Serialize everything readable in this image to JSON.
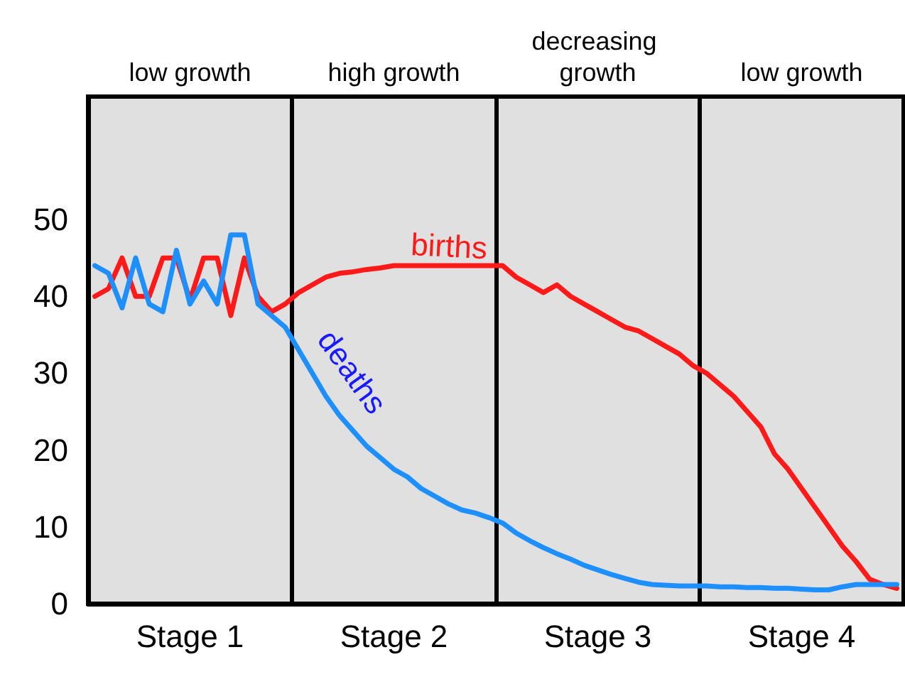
{
  "chart_data": {
    "type": "line",
    "ylim": [
      0,
      66
    ],
    "categories": [
      null,
      null,
      null,
      null,
      null,
      null,
      null,
      "Stage 1",
      null,
      null,
      null,
      null,
      null,
      null,
      null,
      null,
      null,
      null,
      null,
      null,
      null,
      null,
      "Stage 2",
      null,
      null,
      null,
      null,
      null,
      null,
      null,
      null,
      null,
      null,
      null,
      null,
      null,
      null,
      "Stage 3",
      null,
      null,
      null,
      null,
      null,
      null,
      null,
      null,
      null,
      null,
      null,
      null,
      null,
      null,
      "Stage 4",
      null,
      null,
      null,
      null,
      null,
      null,
      null
    ],
    "yticks": [
      0,
      10,
      20,
      30,
      40,
      50
    ],
    "series": [
      {
        "color": "#ff1a1a",
        "values": [
          40,
          41,
          45,
          40,
          40,
          45,
          45,
          39.5,
          45,
          45,
          37.5,
          45,
          40,
          38,
          39,
          40.5,
          41.5,
          42.5,
          43,
          43.2,
          43.5,
          43.7,
          44,
          44,
          44,
          44,
          44,
          44,
          44,
          44,
          44,
          42.5,
          41.5,
          40.5,
          41.5,
          40,
          39,
          38,
          37,
          36,
          35.5,
          34.5,
          33.5,
          32.5,
          31,
          30,
          28.5,
          27,
          25,
          23,
          19.5,
          17.5,
          15,
          12.5,
          10,
          7.5,
          5.5,
          3.2,
          2.5,
          2
        ]
      },
      {
        "color": "#1e8fff",
        "values": [
          44,
          43,
          38.5,
          45,
          39,
          38,
          46,
          39,
          42,
          39,
          48,
          48,
          39,
          37.5,
          36,
          33,
          30,
          27,
          24.5,
          22.5,
          20.5,
          19,
          17.5,
          16.5,
          15,
          14,
          13,
          12.2,
          11.8,
          11.2,
          10.5,
          9.2,
          8.2,
          7.3,
          6.5,
          5.8,
          5,
          4.4,
          3.8,
          3.3,
          2.8,
          2.5,
          2.4,
          2.3,
          2.3,
          2.3,
          2.2,
          2.2,
          2.1,
          2.1,
          2,
          2,
          1.9,
          1.8,
          1.8,
          2.2,
          2.5,
          2.5,
          2.5,
          2.5
        ]
      }
    ],
    "annotations": [
      "low growth",
      "high growth",
      "decreasing growth",
      "low growth",
      "births",
      "deaths"
    ],
    "grid": "x",
    "marker": "none"
  }
}
